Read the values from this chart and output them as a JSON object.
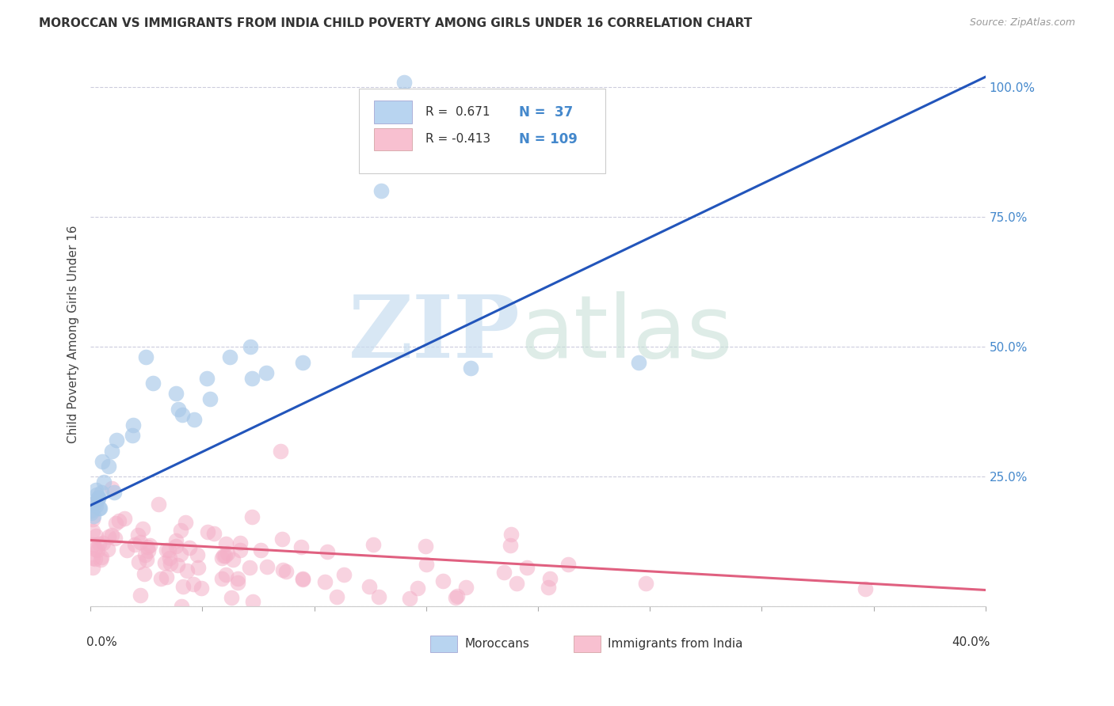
{
  "title": "MOROCCAN VS IMMIGRANTS FROM INDIA CHILD POVERTY AMONG GIRLS UNDER 16 CORRELATION CHART",
  "source": "Source: ZipAtlas.com",
  "ylabel": "Child Poverty Among Girls Under 16",
  "xlim": [
    0.0,
    0.4
  ],
  "ylim": [
    0.0,
    1.05
  ],
  "moroccan_color": "#a8c8e8",
  "india_color": "#f4b0c8",
  "moroccan_line_color": "#2255bb",
  "india_line_color": "#e06080",
  "moroccan_R": 0.671,
  "moroccan_N": 37,
  "india_R": -0.413,
  "india_N": 109,
  "background_color": "#ffffff",
  "grid_color": "#ccccdd",
  "axis_color": "#4488cc",
  "title_fontsize": 11,
  "ytick_labels": [
    "",
    "25.0%",
    "50.0%",
    "75.0%",
    "100.0%"
  ],
  "ytick_values": [
    0.0,
    0.25,
    0.5,
    0.75,
    1.0
  ],
  "blue_line_y0": 0.195,
  "blue_line_y1": 1.02,
  "blue_line_x0": 0.0,
  "blue_line_x1": 0.4,
  "pink_line_y0": 0.128,
  "pink_line_y1": 0.032,
  "pink_line_x0": 0.0,
  "pink_line_x1": 0.4,
  "legend_r1": "R =  0.671",
  "legend_n1": "N =  37",
  "legend_r2": "R = -0.413",
  "legend_n2": "N = 109",
  "legend_color1": "#b8d4f0",
  "legend_color2": "#f8c0d0",
  "bottom_legend1": "Moroccans",
  "bottom_legend2": "Immigrants from India"
}
